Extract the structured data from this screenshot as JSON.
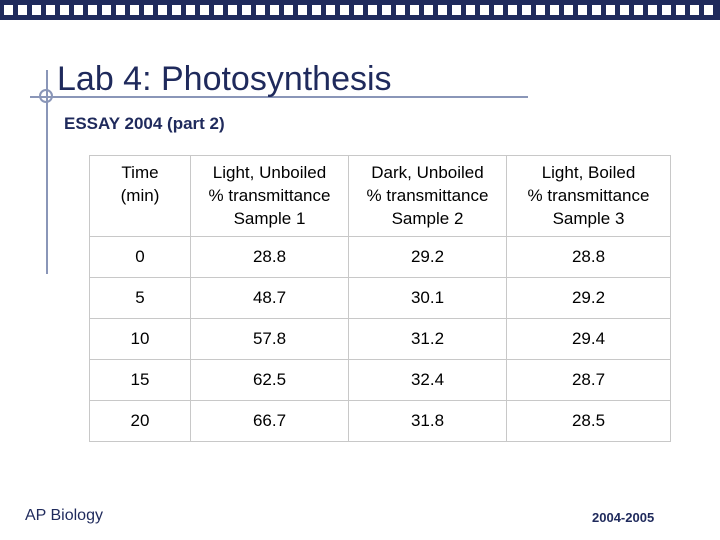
{
  "header": {
    "title": "Lab 4: Photosynthesis",
    "subtitle": "ESSAY 2004 (part 2)"
  },
  "table": {
    "columns": [
      [
        "Time",
        "(min)"
      ],
      [
        "Light, Unboiled",
        "% transmittance",
        "Sample 1"
      ],
      [
        "Dark, Unboiled",
        "% transmittance",
        "Sample 2"
      ],
      [
        "Light, Boiled",
        "% transmittance",
        "Sample 3"
      ]
    ],
    "rows": [
      [
        "0",
        "28.8",
        "29.2",
        "28.8"
      ],
      [
        "5",
        "48.7",
        "30.1",
        "29.2"
      ],
      [
        "10",
        "57.8",
        "31.2",
        "29.4"
      ],
      [
        "15",
        "62.5",
        "32.4",
        "28.7"
      ],
      [
        "20",
        "66.7",
        "31.8",
        "28.5"
      ]
    ]
  },
  "footer": {
    "left": "AP Biology",
    "right": "2004-2005"
  }
}
